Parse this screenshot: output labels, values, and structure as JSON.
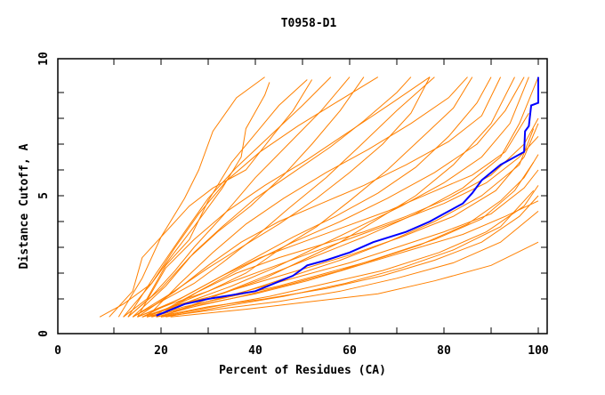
{
  "chart_data": {
    "type": "line",
    "title": "T0958-D1",
    "xlabel": "Percent of Residues (CA)",
    "ylabel": "Distance Cutoff, A",
    "xlim": [
      0,
      100
    ],
    "ylim": [
      0,
      10
    ],
    "xticks": [
      0,
      20,
      40,
      60,
      80,
      100
    ],
    "yticks": [
      0,
      5,
      10
    ],
    "grid": false,
    "colors": {
      "others": "#ff8000",
      "highlight": "#0000ff"
    },
    "highlight": [
      [
        19,
        0.35
      ],
      [
        25,
        0.8
      ],
      [
        30,
        1.0
      ],
      [
        40,
        1.3
      ],
      [
        44,
        1.6
      ],
      [
        48,
        1.9
      ],
      [
        51,
        2.3
      ],
      [
        55,
        2.5
      ],
      [
        60,
        2.8
      ],
      [
        65,
        3.2
      ],
      [
        72,
        3.6
      ],
      [
        77,
        4.0
      ],
      [
        80,
        4.3
      ],
      [
        84,
        4.7
      ],
      [
        86,
        5.1
      ],
      [
        88,
        5.6
      ],
      [
        92,
        6.2
      ],
      [
        97,
        6.7
      ],
      [
        97.2,
        7.5
      ],
      [
        98,
        7.7
      ],
      [
        98.5,
        8.5
      ],
      [
        100,
        8.6
      ],
      [
        100,
        9.6
      ]
    ],
    "series": [
      [
        [
          7,
          0.3
        ],
        [
          12,
          0.8
        ],
        [
          18,
          1.6
        ],
        [
          22,
          2.6
        ],
        [
          27,
          3.8
        ],
        [
          33,
          5.3
        ],
        [
          37,
          6.5
        ],
        [
          38,
          7.6
        ],
        [
          42,
          8.9
        ],
        [
          43,
          9.4
        ]
      ],
      [
        [
          9,
          0.3
        ],
        [
          14,
          1.3
        ],
        [
          16,
          2.6
        ],
        [
          20,
          3.4
        ],
        [
          26,
          4.6
        ],
        [
          31,
          5.3
        ],
        [
          38,
          6.0
        ],
        [
          44,
          7.4
        ],
        [
          48,
          8.3
        ],
        [
          52,
          9.5
        ]
      ],
      [
        [
          12,
          0.3
        ],
        [
          17,
          1.0
        ],
        [
          21,
          2.3
        ],
        [
          26,
          3.3
        ],
        [
          30,
          4.8
        ],
        [
          35,
          6.3
        ],
        [
          40,
          7.4
        ],
        [
          45,
          8.5
        ],
        [
          51,
          9.5
        ]
      ],
      [
        [
          13,
          0.3
        ],
        [
          18,
          1.1
        ],
        [
          23,
          2.1
        ],
        [
          27,
          3.0
        ],
        [
          33,
          4.2
        ],
        [
          40,
          5.7
        ],
        [
          47,
          7.0
        ],
        [
          54,
          8.3
        ],
        [
          60,
          9.6
        ]
      ],
      [
        [
          14,
          0.3
        ],
        [
          20,
          0.9
        ],
        [
          27,
          1.6
        ],
        [
          33,
          2.4
        ],
        [
          40,
          3.4
        ],
        [
          47,
          4.5
        ],
        [
          55,
          5.7
        ],
        [
          62,
          6.9
        ],
        [
          70,
          8.3
        ],
        [
          78,
          9.6
        ]
      ],
      [
        [
          15,
          0.3
        ],
        [
          22,
          0.8
        ],
        [
          30,
          1.3
        ],
        [
          38,
          2.0
        ],
        [
          45,
          2.9
        ],
        [
          53,
          3.8
        ],
        [
          60,
          4.8
        ],
        [
          68,
          6.0
        ],
        [
          75,
          7.2
        ],
        [
          82,
          8.4
        ],
        [
          86,
          9.6
        ]
      ],
      [
        [
          16,
          0.3
        ],
        [
          24,
          0.8
        ],
        [
          33,
          1.2
        ],
        [
          42,
          1.8
        ],
        [
          50,
          2.5
        ],
        [
          58,
          3.2
        ],
        [
          66,
          4.1
        ],
        [
          74,
          5.0
        ],
        [
          82,
          6.2
        ],
        [
          90,
          7.8
        ],
        [
          95,
          9.6
        ]
      ],
      [
        [
          17,
          0.3
        ],
        [
          25,
          0.7
        ],
        [
          35,
          1.1
        ],
        [
          45,
          1.5
        ],
        [
          55,
          2.0
        ],
        [
          65,
          2.5
        ],
        [
          75,
          3.1
        ],
        [
          85,
          3.9
        ],
        [
          92,
          4.8
        ],
        [
          97,
          5.7
        ],
        [
          100,
          6.6
        ]
      ],
      [
        [
          17,
          0.3
        ],
        [
          27,
          0.7
        ],
        [
          37,
          1.1
        ],
        [
          48,
          1.6
        ],
        [
          58,
          2.1
        ],
        [
          68,
          2.7
        ],
        [
          78,
          3.3
        ],
        [
          88,
          4.1
        ],
        [
          95,
          5.2
        ],
        [
          99,
          6.3
        ]
      ],
      [
        [
          18,
          0.3
        ],
        [
          28,
          0.8
        ],
        [
          38,
          1.3
        ],
        [
          48,
          1.9
        ],
        [
          58,
          2.5
        ],
        [
          68,
          3.2
        ],
        [
          78,
          4.0
        ],
        [
          88,
          5.0
        ],
        [
          96,
          6.2
        ],
        [
          99,
          7.6
        ]
      ],
      [
        [
          16,
          0.3
        ],
        [
          26,
          0.9
        ],
        [
          35,
          1.5
        ],
        [
          44,
          2.2
        ],
        [
          53,
          3.0
        ],
        [
          62,
          3.8
        ],
        [
          71,
          4.6
        ],
        [
          80,
          5.5
        ],
        [
          88,
          6.5
        ],
        [
          94,
          7.8
        ],
        [
          98,
          9.6
        ]
      ],
      [
        [
          15,
          0.3
        ],
        [
          24,
          1.0
        ],
        [
          32,
          1.8
        ],
        [
          40,
          2.6
        ],
        [
          48,
          3.4
        ],
        [
          57,
          4.2
        ],
        [
          66,
          5.1
        ],
        [
          74,
          6.1
        ],
        [
          81,
          7.3
        ],
        [
          87,
          8.6
        ],
        [
          90,
          9.6
        ]
      ],
      [
        [
          14,
          0.3
        ],
        [
          22,
          1.2
        ],
        [
          30,
          2.2
        ],
        [
          37,
          3.0
        ],
        [
          45,
          3.9
        ],
        [
          53,
          4.9
        ],
        [
          60,
          5.9
        ],
        [
          67,
          7.0
        ],
        [
          73,
          8.2
        ],
        [
          77,
          9.6
        ]
      ],
      [
        [
          13,
          0.3
        ],
        [
          20,
          1.4
        ],
        [
          26,
          2.6
        ],
        [
          32,
          3.6
        ],
        [
          39,
          4.6
        ],
        [
          46,
          5.8
        ],
        [
          52,
          7.0
        ],
        [
          58,
          8.3
        ],
        [
          63,
          9.6
        ]
      ],
      [
        [
          19,
          0.3
        ],
        [
          30,
          0.7
        ],
        [
          42,
          1.0
        ],
        [
          55,
          1.4
        ],
        [
          67,
          1.9
        ],
        [
          78,
          2.5
        ],
        [
          88,
          3.2
        ],
        [
          96,
          4.2
        ],
        [
          100,
          5.0
        ]
      ],
      [
        [
          20,
          0.3
        ],
        [
          32,
          0.6
        ],
        [
          45,
          0.9
        ],
        [
          58,
          1.3
        ],
        [
          70,
          1.8
        ],
        [
          82,
          2.4
        ],
        [
          92,
          3.2
        ],
        [
          100,
          4.4
        ]
      ],
      [
        [
          22,
          0.3
        ],
        [
          38,
          0.6
        ],
        [
          52,
          0.9
        ],
        [
          66,
          1.2
        ],
        [
          78,
          1.7
        ],
        [
          90,
          2.3
        ],
        [
          100,
          3.2
        ]
      ],
      [
        [
          18,
          0.3
        ],
        [
          30,
          0.9
        ],
        [
          40,
          1.4
        ],
        [
          50,
          1.9
        ],
        [
          60,
          2.4
        ],
        [
          70,
          3.0
        ],
        [
          80,
          3.6
        ],
        [
          90,
          4.3
        ],
        [
          97,
          5.3
        ],
        [
          100,
          6.0
        ]
      ],
      [
        [
          17,
          0.3
        ],
        [
          26,
          1.0
        ],
        [
          34,
          1.6
        ],
        [
          43,
          2.2
        ],
        [
          52,
          2.8
        ],
        [
          61,
          3.4
        ],
        [
          70,
          4.0
        ],
        [
          80,
          4.7
        ],
        [
          89,
          5.5
        ],
        [
          96,
          6.5
        ],
        [
          100,
          7.3
        ]
      ],
      [
        [
          16,
          0.3
        ],
        [
          25,
          1.1
        ],
        [
          33,
          1.9
        ],
        [
          41,
          2.6
        ],
        [
          50,
          3.2
        ],
        [
          59,
          3.8
        ],
        [
          68,
          4.4
        ],
        [
          77,
          5.1
        ],
        [
          86,
          5.8
        ],
        [
          93,
          6.7
        ],
        [
          98,
          8.2
        ]
      ],
      [
        [
          15,
          0.3
        ],
        [
          23,
          1.3
        ],
        [
          30,
          2.3
        ],
        [
          37,
          3.2
        ],
        [
          45,
          4.0
        ],
        [
          54,
          4.7
        ],
        [
          63,
          5.4
        ],
        [
          72,
          6.2
        ],
        [
          81,
          7.1
        ],
        [
          88,
          8.1
        ],
        [
          92,
          9.6
        ]
      ],
      [
        [
          14,
          0.3
        ],
        [
          21,
          1.5
        ],
        [
          27,
          2.8
        ],
        [
          33,
          3.8
        ],
        [
          40,
          4.9
        ],
        [
          48,
          5.9
        ],
        [
          56,
          6.9
        ],
        [
          63,
          7.9
        ],
        [
          70,
          9.0
        ],
        [
          73,
          9.6
        ]
      ],
      [
        [
          12,
          0.3
        ],
        [
          18,
          1.6
        ],
        [
          23,
          3.0
        ],
        [
          28,
          4.3
        ],
        [
          34,
          5.6
        ],
        [
          41,
          6.7
        ],
        [
          49,
          7.7
        ],
        [
          57,
          8.6
        ],
        [
          66,
          9.6
        ]
      ],
      [
        [
          19,
          0.3
        ],
        [
          29,
          0.8
        ],
        [
          40,
          1.2
        ],
        [
          51,
          1.7
        ],
        [
          62,
          2.3
        ],
        [
          73,
          2.9
        ],
        [
          84,
          3.5
        ],
        [
          93,
          4.2
        ],
        [
          100,
          4.8
        ]
      ],
      [
        [
          20,
          0.3
        ],
        [
          31,
          0.7
        ],
        [
          43,
          1.1
        ],
        [
          55,
          1.6
        ],
        [
          67,
          2.1
        ],
        [
          79,
          2.8
        ],
        [
          89,
          3.6
        ],
        [
          97,
          4.6
        ],
        [
          100,
          5.4
        ]
      ],
      [
        [
          21,
          0.3
        ],
        [
          33,
          0.7
        ],
        [
          46,
          1.1
        ],
        [
          59,
          1.6
        ],
        [
          71,
          2.2
        ],
        [
          82,
          2.9
        ],
        [
          92,
          3.8
        ],
        [
          99,
          5.2
        ]
      ],
      [
        [
          18,
          0.3
        ],
        [
          27,
          1.2
        ],
        [
          36,
          2.0
        ],
        [
          45,
          2.6
        ],
        [
          54,
          3.1
        ],
        [
          63,
          3.6
        ],
        [
          72,
          4.2
        ],
        [
          81,
          4.9
        ],
        [
          90,
          5.8
        ],
        [
          97,
          7.0
        ],
        [
          100,
          8.0
        ]
      ],
      [
        [
          17,
          0.3
        ],
        [
          24,
          1.6
        ],
        [
          31,
          2.8
        ],
        [
          38,
          3.9
        ],
        [
          46,
          4.9
        ],
        [
          55,
          5.9
        ],
        [
          64,
          6.8
        ],
        [
          73,
          7.8
        ],
        [
          81,
          8.8
        ],
        [
          85,
          9.6
        ]
      ],
      [
        [
          13,
          0.3
        ],
        [
          19,
          2.0
        ],
        [
          25,
          3.6
        ],
        [
          30,
          4.9
        ],
        [
          36,
          6.1
        ],
        [
          43,
          7.3
        ],
        [
          50,
          8.5
        ],
        [
          56,
          9.6
        ]
      ],
      [
        [
          11,
          0.3
        ],
        [
          16,
          1.8
        ],
        [
          20,
          3.4
        ],
        [
          25,
          4.9
        ],
        [
          28,
          6.0
        ],
        [
          31,
          7.5
        ],
        [
          36,
          8.8
        ],
        [
          42,
          9.6
        ]
      ],
      [
        [
          16,
          0.3
        ],
        [
          27,
          0.9
        ],
        [
          38,
          1.5
        ],
        [
          49,
          2.1
        ],
        [
          60,
          2.7
        ],
        [
          71,
          3.4
        ],
        [
          82,
          4.2
        ],
        [
          91,
          5.2
        ],
        [
          97,
          6.5
        ],
        [
          100,
          7.8
        ]
      ],
      [
        [
          19,
          0.3
        ],
        [
          28,
          1.3
        ],
        [
          38,
          2.3
        ],
        [
          48,
          3.2
        ],
        [
          58,
          4.0
        ],
        [
          68,
          4.9
        ],
        [
          78,
          5.9
        ],
        [
          87,
          7.0
        ],
        [
          93,
          8.3
        ],
        [
          97,
          9.6
        ]
      ],
      [
        [
          20,
          0.3
        ],
        [
          30,
          1.0
        ],
        [
          41,
          1.8
        ],
        [
          52,
          2.6
        ],
        [
          63,
          3.4
        ],
        [
          74,
          4.3
        ],
        [
          84,
          5.3
        ],
        [
          92,
          6.5
        ],
        [
          96,
          7.8
        ],
        [
          100,
          9.6
        ]
      ],
      [
        [
          15,
          0.3
        ],
        [
          21,
          2.2
        ],
        [
          27,
          3.3
        ],
        [
          34,
          4.4
        ],
        [
          42,
          5.4
        ],
        [
          51,
          6.4
        ],
        [
          60,
          7.5
        ],
        [
          69,
          8.6
        ],
        [
          77,
          9.6
        ]
      ]
    ]
  }
}
